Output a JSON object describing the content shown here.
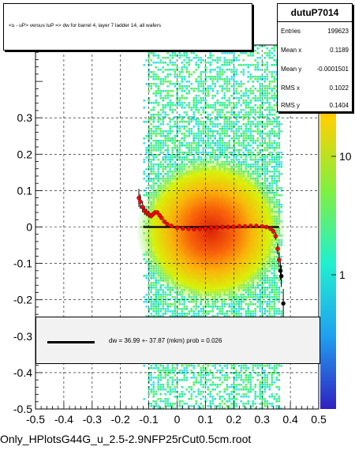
{
  "chart_data": {
    "type": "scatter",
    "title": "<u - uP>       versus  tuP =>  dw for barrel 4, layer 7 ladder 14, all wafers",
    "xlim": [
      -0.5,
      0.5
    ],
    "ylim": [
      -0.5,
      0.5
    ],
    "x_ticks": [
      "-0.5",
      "-0.4",
      "-0.3",
      "-0.2",
      "-0.1",
      "0",
      "0.1",
      "0.2",
      "0.3",
      "0.4",
      "0.5"
    ],
    "y_ticks": [
      "-0.5",
      "-0.4",
      "-0.3",
      "-0.2",
      "-0.1",
      "0",
      "0.1",
      "0.2",
      "0.3"
    ],
    "z_ticks": [
      "1",
      "10"
    ],
    "grid": true,
    "profile_points": [
      {
        "x": -0.135,
        "y": 0.08,
        "err": 0.025
      },
      {
        "x": -0.13,
        "y": 0.07,
        "err": 0.02
      },
      {
        "x": -0.122,
        "y": 0.055,
        "err": 0.015
      },
      {
        "x": -0.115,
        "y": 0.045,
        "err": 0.012
      },
      {
        "x": -0.108,
        "y": 0.04,
        "err": 0.01
      },
      {
        "x": -0.1,
        "y": 0.035,
        "err": 0.008
      },
      {
        "x": -0.092,
        "y": 0.03,
        "err": 0.006
      },
      {
        "x": -0.085,
        "y": 0.035,
        "err": 0.006
      },
      {
        "x": -0.078,
        "y": 0.04,
        "err": 0.005
      },
      {
        "x": -0.07,
        "y": 0.04,
        "err": 0.005
      },
      {
        "x": -0.062,
        "y": 0.032,
        "err": 0.004
      },
      {
        "x": -0.055,
        "y": 0.025,
        "err": 0.004
      },
      {
        "x": -0.045,
        "y": 0.015,
        "err": 0.003
      },
      {
        "x": -0.035,
        "y": 0.008,
        "err": 0.003
      },
      {
        "x": -0.02,
        "y": 0.003,
        "err": 0.002
      },
      {
        "x": 0.0,
        "y": -0.002,
        "err": 0.002
      },
      {
        "x": 0.02,
        "y": -0.004,
        "err": 0.002
      },
      {
        "x": 0.04,
        "y": -0.005,
        "err": 0.002
      },
      {
        "x": 0.06,
        "y": -0.006,
        "err": 0.002
      },
      {
        "x": 0.08,
        "y": -0.005,
        "err": 0.002
      },
      {
        "x": 0.1,
        "y": -0.004,
        "err": 0.002
      },
      {
        "x": 0.12,
        "y": -0.002,
        "err": 0.002
      },
      {
        "x": 0.14,
        "y": -0.001,
        "err": 0.002
      },
      {
        "x": 0.16,
        "y": 0.0,
        "err": 0.002
      },
      {
        "x": 0.18,
        "y": 0.0,
        "err": 0.002
      },
      {
        "x": 0.2,
        "y": 0.001,
        "err": 0.002
      },
      {
        "x": 0.22,
        "y": 0.002,
        "err": 0.002
      },
      {
        "x": 0.24,
        "y": 0.002,
        "err": 0.002
      },
      {
        "x": 0.26,
        "y": 0.003,
        "err": 0.003
      },
      {
        "x": 0.28,
        "y": 0.003,
        "err": 0.003
      },
      {
        "x": 0.3,
        "y": 0.002,
        "err": 0.003
      },
      {
        "x": 0.315,
        "y": 0.0,
        "err": 0.004
      },
      {
        "x": 0.33,
        "y": -0.005,
        "err": 0.005
      },
      {
        "x": 0.34,
        "y": -0.012,
        "err": 0.007
      },
      {
        "x": 0.348,
        "y": -0.025,
        "err": 0.01
      },
      {
        "x": 0.355,
        "y": -0.06,
        "err": 0.015
      },
      {
        "x": 0.36,
        "y": -0.09,
        "err": 0.02
      },
      {
        "x": 0.365,
        "y": -0.12,
        "err": 0.025
      },
      {
        "x": 0.368,
        "y": -0.135,
        "err": 0.03
      },
      {
        "x": 0.375,
        "y": -0.21,
        "err": 0.04
      }
    ],
    "fit_line": {
      "x": [
        -0.12,
        0.36
      ],
      "y": [
        0.0,
        0.0
      ]
    }
  },
  "stats": {
    "name": "dutuP7014",
    "rows": [
      {
        "label": "Entries",
        "value": "199623"
      },
      {
        "label": "Mean x",
        "value": "0.1189"
      },
      {
        "label": "Mean y",
        "value": "-0.0001501"
      },
      {
        "label": "RMS x",
        "value": "0.1022"
      },
      {
        "label": "RMS y",
        "value": "0.1404"
      }
    ]
  },
  "legend": {
    "text": "dw =   36.99 +- 37.87 (mkm) prob = 0.026"
  },
  "footer": "Only_HPlotsG44G_u_2.5-2.9NFP25rCut0.5cm.root",
  "colors": {
    "line": "#000000",
    "marker": "#ff0000",
    "frame": "#000000"
  }
}
